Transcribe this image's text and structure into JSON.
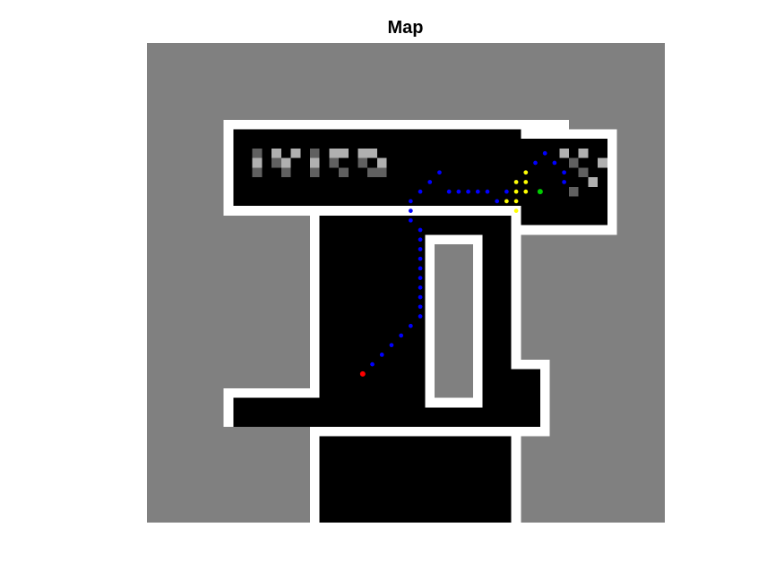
{
  "title": "Map",
  "colors": {
    "unknown": "#808080",
    "occupied": "#ffffff",
    "free": "#000000",
    "path": "#0000ff",
    "start": "#ff0000",
    "goal": "#00cc00",
    "frontier": "#ffff00"
  },
  "grid": {
    "rows": 50,
    "cols": 54
  },
  "path": [
    [
      22.5,
      34.5
    ],
    [
      23.5,
      33.5
    ],
    [
      24.5,
      32.5
    ],
    [
      25.5,
      31.5
    ],
    [
      26.5,
      30.5
    ],
    [
      27.5,
      29.5
    ],
    [
      28.5,
      28.5
    ],
    [
      28.5,
      27.5
    ],
    [
      28.5,
      26.5
    ],
    [
      28.5,
      25.5
    ],
    [
      28.5,
      24.5
    ],
    [
      28.5,
      23.5
    ],
    [
      28.5,
      22.5
    ],
    [
      28.5,
      21.5
    ],
    [
      28.5,
      20.5
    ],
    [
      28.5,
      19.5
    ],
    [
      27.5,
      18.5
    ],
    [
      27.5,
      17.5
    ],
    [
      27.5,
      16.5
    ],
    [
      28.5,
      15.5
    ],
    [
      29.5,
      14.5
    ],
    [
      30.5,
      13.5
    ],
    [
      31.5,
      15.5
    ],
    [
      32.5,
      15.5
    ],
    [
      33.5,
      15.5
    ],
    [
      34.5,
      15.5
    ],
    [
      35.5,
      15.5
    ],
    [
      36.5,
      16.5
    ],
    [
      37.5,
      15.5
    ],
    [
      38.5,
      14.5
    ],
    [
      39.5,
      13.5
    ],
    [
      40.5,
      12.5
    ],
    [
      41.5,
      11.5
    ],
    [
      42.5,
      12.5
    ],
    [
      43.5,
      13.5
    ],
    [
      43.5,
      14.5
    ]
  ],
  "frontier_points": [
    [
      37.5,
      16.5
    ],
    [
      38.5,
      16.5
    ],
    [
      38.5,
      15.5
    ],
    [
      39.5,
      15.5
    ],
    [
      39.5,
      14.5
    ],
    [
      38.5,
      17.5
    ],
    [
      39.5,
      13.5
    ],
    [
      38.5,
      14.5
    ]
  ],
  "start": [
    22.5,
    34.5
  ],
  "goal": [
    41.0,
    15.5
  ]
}
